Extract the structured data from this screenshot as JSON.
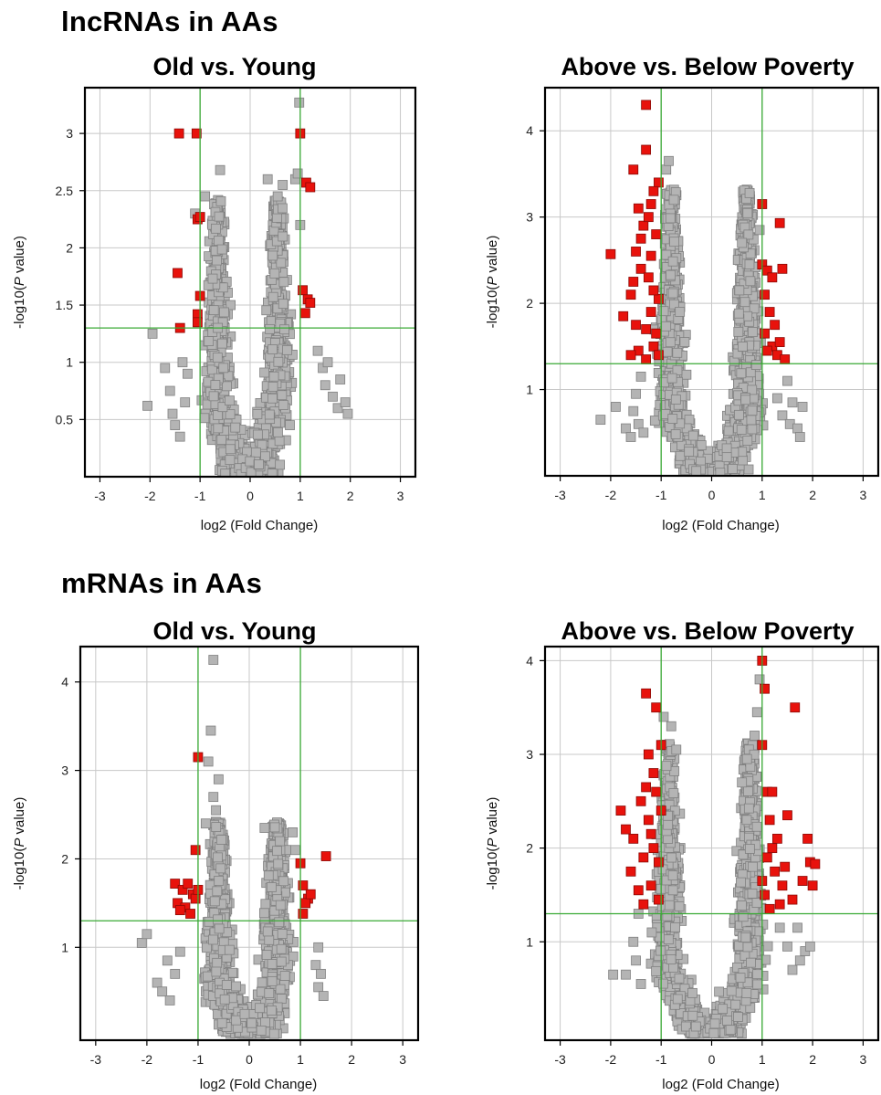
{
  "sections": [
    {
      "title": "lncRNAs in AAs"
    },
    {
      "title": "mRNAs in AAs"
    }
  ],
  "colors": {
    "significant": "#e8120c",
    "significant_edge": "#8a0a06",
    "nonsignificant": "#b4b4b4",
    "nonsignificant_edge": "#808080",
    "threshold_lines": "#3aaa35",
    "grid": "#c8c8c8"
  },
  "chart_data": [
    {
      "type": "scatter",
      "title": "Old vs. Young",
      "xlabel": "log2 (Fold Change)",
      "ylabel": "-log10(P value)",
      "xlim": [
        -3.3,
        3.3
      ],
      "ylim": [
        0,
        3.4
      ],
      "xticks": [
        -3,
        -2,
        -1,
        0,
        1,
        2,
        3
      ],
      "yticks": [
        0.5,
        1,
        1.5,
        2,
        2.5,
        3
      ],
      "ytick_labels": [
        "0.5",
        "1",
        "1.5",
        "2",
        "2.5",
        "3"
      ],
      "thresholds": {
        "x": [
          -1,
          1
        ],
        "y": 1.3
      },
      "grid": true,
      "cloud": {
        "max_y": 2.4,
        "left_center": -0.65,
        "right_center": 0.55
      },
      "scatter_points": [
        [
          -2.05,
          0.62
        ],
        [
          -1.95,
          1.25
        ],
        [
          -1.7,
          0.95
        ],
        [
          -1.6,
          0.75
        ],
        [
          -1.55,
          0.55
        ],
        [
          -1.5,
          0.45
        ],
        [
          -1.4,
          0.35
        ],
        [
          -1.35,
          1.0
        ],
        [
          -1.3,
          0.65
        ],
        [
          -1.25,
          0.9
        ],
        [
          1.35,
          1.1
        ],
        [
          1.45,
          0.95
        ],
        [
          1.5,
          0.8
        ],
        [
          1.55,
          1.0
        ],
        [
          1.65,
          0.7
        ],
        [
          1.75,
          0.6
        ],
        [
          1.8,
          0.85
        ],
        [
          1.9,
          0.65
        ],
        [
          1.95,
          0.55
        ],
        [
          -1.1,
          2.3
        ],
        [
          -0.9,
          2.45
        ],
        [
          -0.6,
          2.68
        ],
        [
          0.35,
          2.6
        ],
        [
          0.55,
          2.45
        ],
        [
          0.65,
          2.55
        ],
        [
          0.9,
          2.6
        ],
        [
          0.95,
          2.65
        ],
        [
          0.98,
          3.27
        ],
        [
          1.0,
          2.2
        ]
      ],
      "series": [
        {
          "name": "significant",
          "points": [
            [
              -1.42,
              3.0
            ],
            [
              -1.07,
              3.0
            ],
            [
              -1.05,
              2.25
            ],
            [
              -1.0,
              2.27
            ],
            [
              -1.45,
              1.78
            ],
            [
              -1.4,
              1.3
            ],
            [
              -1.05,
              1.42
            ],
            [
              -1.05,
              1.35
            ],
            [
              -1.0,
              1.58
            ],
            [
              1.0,
              3.0
            ],
            [
              1.12,
              2.57
            ],
            [
              1.2,
              2.53
            ],
            [
              1.05,
              1.63
            ],
            [
              1.15,
              1.55
            ],
            [
              1.2,
              1.52
            ],
            [
              1.1,
              1.43
            ]
          ]
        }
      ]
    },
    {
      "type": "scatter",
      "title": "Above vs. Below Poverty",
      "xlabel": "log2 (Fold Change)",
      "ylabel": "-log10(P value)",
      "xlim": [
        -3.3,
        3.3
      ],
      "ylim": [
        0,
        4.5
      ],
      "xticks": [
        -3,
        -2,
        -1,
        0,
        1,
        2,
        3
      ],
      "yticks": [
        1,
        2,
        3,
        4
      ],
      "ytick_labels": [
        "1",
        "2",
        "3",
        "4"
      ],
      "thresholds": {
        "x": [
          -1,
          1
        ],
        "y": 1.3
      },
      "grid": true,
      "cloud": {
        "max_y": 3.3,
        "left_center": -0.8,
        "right_center": 0.7
      },
      "scatter_points": [
        [
          -2.2,
          0.65
        ],
        [
          -1.9,
          0.8
        ],
        [
          -1.7,
          0.55
        ],
        [
          -1.6,
          0.45
        ],
        [
          -1.55,
          0.75
        ],
        [
          -1.5,
          0.95
        ],
        [
          -1.45,
          0.6
        ],
        [
          -1.4,
          1.15
        ],
        [
          -1.35,
          0.5
        ],
        [
          1.3,
          0.9
        ],
        [
          1.4,
          0.7
        ],
        [
          1.5,
          1.1
        ],
        [
          1.55,
          0.6
        ],
        [
          1.6,
          0.85
        ],
        [
          1.7,
          0.55
        ],
        [
          1.75,
          0.45
        ],
        [
          1.8,
          0.8
        ],
        [
          -0.9,
          3.55
        ],
        [
          -0.85,
          3.65
        ],
        [
          -0.75,
          3.2
        ],
        [
          0.95,
          2.85
        ],
        [
          0.6,
          2.7
        ],
        [
          0.75,
          2.45
        ]
      ],
      "series": [
        {
          "name": "significant",
          "points": [
            [
              -1.3,
              4.3
            ],
            [
              -1.3,
              3.78
            ],
            [
              -1.55,
              3.55
            ],
            [
              -1.05,
              3.4
            ],
            [
              -1.15,
              3.3
            ],
            [
              -1.45,
              3.1
            ],
            [
              -1.2,
              3.15
            ],
            [
              -2.0,
              2.57
            ],
            [
              -1.75,
              1.85
            ],
            [
              -1.6,
              2.1
            ],
            [
              -1.5,
              2.6
            ],
            [
              -1.4,
              2.4
            ],
            [
              -1.3,
              1.7
            ],
            [
              -1.2,
              1.9
            ],
            [
              -1.1,
              2.8
            ],
            [
              -1.45,
              1.45
            ],
            [
              -1.35,
              2.9
            ],
            [
              -1.25,
              2.3
            ],
            [
              -1.15,
              1.5
            ],
            [
              -1.05,
              2.05
            ],
            [
              -1.55,
              2.25
            ],
            [
              -1.3,
              1.35
            ],
            [
              -1.1,
              1.65
            ],
            [
              -1.5,
              1.75
            ],
            [
              -1.4,
              2.75
            ],
            [
              -1.2,
              2.55
            ],
            [
              -1.05,
              1.4
            ],
            [
              -1.6,
              1.4
            ],
            [
              -1.25,
              3.0
            ],
            [
              -1.15,
              2.15
            ],
            [
              1.0,
              3.15
            ],
            [
              1.35,
              2.93
            ],
            [
              1.0,
              2.45
            ],
            [
              1.1,
              2.38
            ],
            [
              1.2,
              2.3
            ],
            [
              1.4,
              2.4
            ],
            [
              1.05,
              2.1
            ],
            [
              1.15,
              1.9
            ],
            [
              1.25,
              1.75
            ],
            [
              1.05,
              1.65
            ],
            [
              1.2,
              1.5
            ],
            [
              1.3,
              1.4
            ],
            [
              1.45,
              1.35
            ],
            [
              1.1,
              1.45
            ],
            [
              1.35,
              1.55
            ]
          ]
        }
      ]
    },
    {
      "type": "scatter",
      "title": "Old vs. Young",
      "xlabel": "log2 (Fold Change)",
      "ylabel": "-log10(P value)",
      "xlim": [
        -3.3,
        3.3
      ],
      "ylim": [
        -0.05,
        4.4
      ],
      "xticks": [
        -3,
        -2,
        -1,
        0,
        1,
        2,
        3
      ],
      "yticks": [
        1,
        2,
        3,
        4
      ],
      "ytick_labels": [
        "1",
        "2",
        "3",
        "4"
      ],
      "thresholds": {
        "x": [
          -1,
          1
        ],
        "y": 1.3
      },
      "grid": true,
      "cloud": {
        "max_y": 2.4,
        "left_center": -0.6,
        "right_center": 0.55
      },
      "scatter_points": [
        [
          -2.1,
          1.05
        ],
        [
          -2.0,
          1.15
        ],
        [
          -1.8,
          0.6
        ],
        [
          -1.7,
          0.5
        ],
        [
          -1.6,
          0.85
        ],
        [
          -1.55,
          0.4
        ],
        [
          -1.45,
          0.7
        ],
        [
          -1.35,
          0.95
        ],
        [
          1.3,
          0.8
        ],
        [
          1.35,
          0.55
        ],
        [
          1.4,
          0.7
        ],
        [
          1.45,
          0.45
        ],
        [
          1.35,
          1.0
        ],
        [
          -0.7,
          4.25
        ],
        [
          -0.75,
          3.45
        ],
        [
          -0.8,
          3.1
        ],
        [
          -0.6,
          2.9
        ],
        [
          -0.7,
          2.7
        ],
        [
          -0.65,
          2.55
        ],
        [
          -0.85,
          2.4
        ],
        [
          0.3,
          2.35
        ],
        [
          0.6,
          2.2
        ],
        [
          0.85,
          2.3
        ],
        [
          0.9,
          2.1
        ]
      ],
      "series": [
        {
          "name": "significant",
          "points": [
            [
              -1.0,
              3.15
            ],
            [
              -1.05,
              2.1
            ],
            [
              -1.45,
              1.72
            ],
            [
              -1.3,
              1.65
            ],
            [
              -1.2,
              1.72
            ],
            [
              -1.1,
              1.6
            ],
            [
              -1.4,
              1.5
            ],
            [
              -1.25,
              1.45
            ],
            [
              -1.05,
              1.55
            ],
            [
              -1.15,
              1.38
            ],
            [
              -1.35,
              1.42
            ],
            [
              -1.0,
              1.65
            ],
            [
              1.0,
              1.95
            ],
            [
              1.5,
              2.03
            ],
            [
              1.15,
              1.55
            ],
            [
              1.05,
              1.7
            ],
            [
              1.1,
              1.5
            ],
            [
              1.05,
              1.38
            ],
            [
              1.2,
              1.6
            ]
          ]
        }
      ]
    },
    {
      "type": "scatter",
      "title": "Above vs. Below Poverty",
      "xlabel": "log2 (Fold Change)",
      "ylabel": "-log10(P value)",
      "xlim": [
        -3.3,
        3.3
      ],
      "ylim": [
        -0.05,
        4.15
      ],
      "xticks": [
        -3,
        -2,
        -1,
        0,
        1,
        2,
        3
      ],
      "yticks": [
        1,
        2,
        3,
        4
      ],
      "ytick_labels": [
        "1",
        "2",
        "3",
        "4"
      ],
      "thresholds": {
        "x": [
          -1,
          1
        ],
        "y": 1.3
      },
      "grid": true,
      "cloud": {
        "max_y": 3.1,
        "left_center": -0.85,
        "right_center": 0.75
      },
      "scatter_points": [
        [
          -1.95,
          0.65
        ],
        [
          -1.7,
          0.65
        ],
        [
          -1.55,
          1.0
        ],
        [
          -1.5,
          0.8
        ],
        [
          -1.45,
          1.3
        ],
        [
          -1.4,
          0.55
        ],
        [
          1.35,
          1.15
        ],
        [
          1.5,
          0.95
        ],
        [
          1.6,
          0.7
        ],
        [
          1.75,
          0.8
        ],
        [
          1.85,
          0.9
        ],
        [
          1.95,
          0.95
        ],
        [
          1.7,
          1.15
        ],
        [
          -0.95,
          3.4
        ],
        [
          -0.8,
          3.3
        ],
        [
          -0.7,
          3.05
        ],
        [
          0.95,
          3.8
        ],
        [
          0.9,
          3.45
        ],
        [
          0.85,
          3.2
        ],
        [
          0.7,
          2.95
        ],
        [
          0.6,
          2.7
        ]
      ],
      "series": [
        {
          "name": "significant",
          "points": [
            [
              -1.3,
              3.65
            ],
            [
              -1.1,
              3.5
            ],
            [
              -1.0,
              3.1
            ],
            [
              -1.25,
              3.0
            ],
            [
              -1.15,
              2.8
            ],
            [
              -1.8,
              2.4
            ],
            [
              -1.7,
              2.2
            ],
            [
              -1.55,
              2.1
            ],
            [
              -1.6,
              1.75
            ],
            [
              -1.4,
              2.5
            ],
            [
              -1.35,
              1.9
            ],
            [
              -1.25,
              2.3
            ],
            [
              -1.2,
              1.6
            ],
            [
              -1.1,
              2.6
            ],
            [
              -1.05,
              1.45
            ],
            [
              -1.45,
              1.55
            ],
            [
              -1.3,
              2.65
            ],
            [
              -1.15,
              2.0
            ],
            [
              -1.05,
              1.85
            ],
            [
              -1.35,
              1.4
            ],
            [
              -1.2,
              2.15
            ],
            [
              -1.0,
              2.4
            ],
            [
              1.0,
              4.0
            ],
            [
              1.05,
              3.7
            ],
            [
              1.65,
              3.5
            ],
            [
              1.0,
              3.1
            ],
            [
              1.1,
              2.6
            ],
            [
              1.2,
              2.6
            ],
            [
              1.5,
              2.35
            ],
            [
              1.15,
              2.3
            ],
            [
              1.3,
              2.1
            ],
            [
              1.9,
              2.1
            ],
            [
              1.95,
              1.85
            ],
            [
              2.05,
              1.83
            ],
            [
              1.8,
              1.65
            ],
            [
              1.6,
              1.45
            ],
            [
              2.0,
              1.6
            ],
            [
              1.1,
              1.9
            ],
            [
              1.25,
              1.75
            ],
            [
              1.4,
              1.6
            ],
            [
              1.05,
              1.5
            ],
            [
              1.35,
              1.4
            ],
            [
              1.2,
              2.0
            ],
            [
              1.45,
              1.8
            ],
            [
              1.0,
              1.65
            ],
            [
              1.15,
              1.35
            ]
          ]
        }
      ]
    }
  ]
}
